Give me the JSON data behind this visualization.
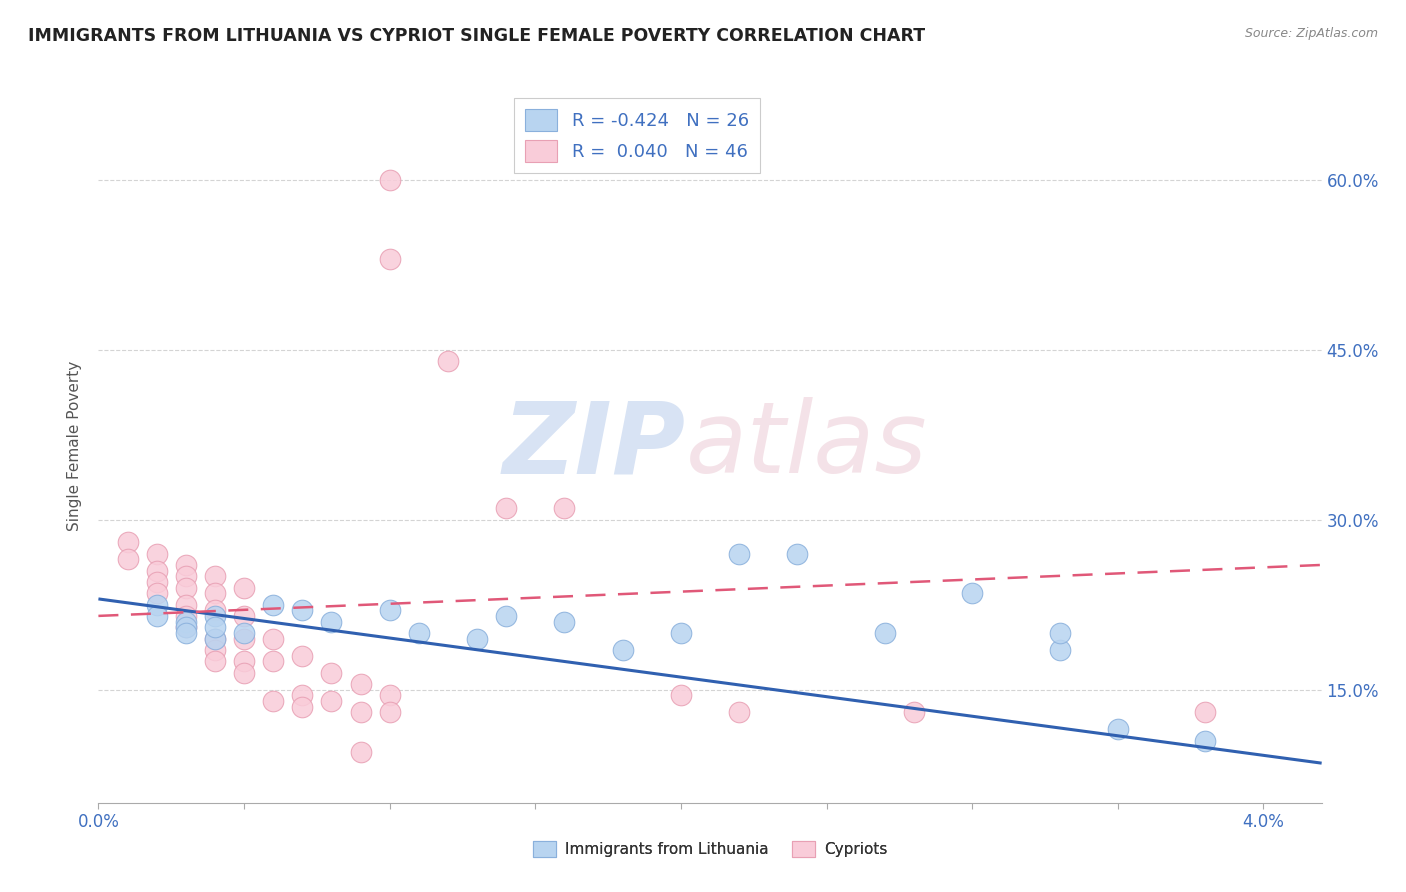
{
  "title": "IMMIGRANTS FROM LITHUANIA VS CYPRIOT SINGLE FEMALE POVERTY CORRELATION CHART",
  "source": "Source: ZipAtlas.com",
  "ylabel": "Single Female Poverty",
  "y_tick_labels": [
    "15.0%",
    "30.0%",
    "45.0%",
    "60.0%"
  ],
  "y_tick_values": [
    0.15,
    0.3,
    0.45,
    0.6
  ],
  "legend_bottom": [
    "Immigrants from Lithuania",
    "Cypriots"
  ],
  "background_color": "#ffffff",
  "grid_color": "#d0d0d0",
  "blue_scatter": [
    [
      0.002,
      0.225
    ],
    [
      0.002,
      0.215
    ],
    [
      0.003,
      0.21
    ],
    [
      0.003,
      0.205
    ],
    [
      0.003,
      0.2
    ],
    [
      0.004,
      0.195
    ],
    [
      0.004,
      0.215
    ],
    [
      0.004,
      0.205
    ],
    [
      0.005,
      0.2
    ],
    [
      0.006,
      0.225
    ],
    [
      0.007,
      0.22
    ],
    [
      0.008,
      0.21
    ],
    [
      0.01,
      0.22
    ],
    [
      0.011,
      0.2
    ],
    [
      0.013,
      0.195
    ],
    [
      0.014,
      0.215
    ],
    [
      0.016,
      0.21
    ],
    [
      0.018,
      0.185
    ],
    [
      0.02,
      0.2
    ],
    [
      0.022,
      0.27
    ],
    [
      0.024,
      0.27
    ],
    [
      0.027,
      0.2
    ],
    [
      0.03,
      0.235
    ],
    [
      0.033,
      0.185
    ],
    [
      0.033,
      0.2
    ],
    [
      0.035,
      0.115
    ],
    [
      0.038,
      0.105
    ]
  ],
  "pink_scatter": [
    [
      0.001,
      0.28
    ],
    [
      0.001,
      0.265
    ],
    [
      0.002,
      0.27
    ],
    [
      0.002,
      0.255
    ],
    [
      0.002,
      0.245
    ],
    [
      0.002,
      0.235
    ],
    [
      0.003,
      0.26
    ],
    [
      0.003,
      0.25
    ],
    [
      0.003,
      0.24
    ],
    [
      0.003,
      0.225
    ],
    [
      0.003,
      0.215
    ],
    [
      0.003,
      0.205
    ],
    [
      0.004,
      0.25
    ],
    [
      0.004,
      0.235
    ],
    [
      0.004,
      0.22
    ],
    [
      0.004,
      0.195
    ],
    [
      0.004,
      0.185
    ],
    [
      0.004,
      0.175
    ],
    [
      0.005,
      0.24
    ],
    [
      0.005,
      0.215
    ],
    [
      0.005,
      0.195
    ],
    [
      0.005,
      0.175
    ],
    [
      0.005,
      0.165
    ],
    [
      0.006,
      0.195
    ],
    [
      0.006,
      0.175
    ],
    [
      0.006,
      0.14
    ],
    [
      0.007,
      0.18
    ],
    [
      0.007,
      0.145
    ],
    [
      0.007,
      0.135
    ],
    [
      0.008,
      0.165
    ],
    [
      0.008,
      0.14
    ],
    [
      0.009,
      0.155
    ],
    [
      0.009,
      0.13
    ],
    [
      0.009,
      0.095
    ],
    [
      0.01,
      0.145
    ],
    [
      0.01,
      0.13
    ],
    [
      0.01,
      0.6
    ],
    [
      0.01,
      0.53
    ],
    [
      0.012,
      0.44
    ],
    [
      0.014,
      0.31
    ],
    [
      0.016,
      0.31
    ],
    [
      0.02,
      0.145
    ],
    [
      0.022,
      0.13
    ],
    [
      0.028,
      0.13
    ],
    [
      0.038,
      0.13
    ]
  ],
  "xlim": [
    0.0,
    0.042
  ],
  "ylim": [
    0.05,
    0.68
  ],
  "blue_line_y0": 0.23,
  "blue_line_y1": 0.085,
  "pink_line_y0": 0.215,
  "pink_line_y1": 0.26
}
